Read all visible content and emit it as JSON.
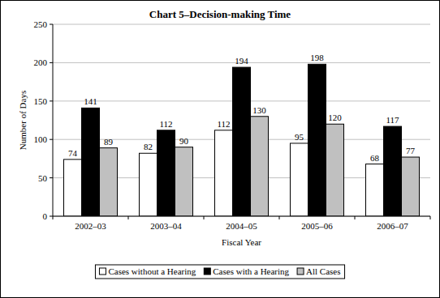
{
  "chart_data": {
    "type": "bar",
    "title": "Chart 5–Decision-making Time",
    "x_label": "Fiscal Year",
    "y_label": "Number of Days",
    "categories": [
      "2002–03",
      "2003–04",
      "2004–05",
      "2005–06",
      "2006–07"
    ],
    "series": [
      {
        "name": "Cases without a Hearing",
        "color": "#ffffff",
        "values": [
          74,
          82,
          112,
          95,
          68
        ]
      },
      {
        "name": "Cases with a Hearing",
        "color": "#000000",
        "values": [
          141,
          112,
          194,
          198,
          117
        ]
      },
      {
        "name": "All Cases",
        "color": "#c0c0c0",
        "values": [
          89,
          90,
          130,
          120,
          77
        ]
      }
    ],
    "ylim": [
      0,
      250
    ],
    "yticks": [
      0,
      50,
      100,
      150,
      200,
      250
    ],
    "grid": true,
    "legend": "bottom",
    "data_labels": true
  }
}
